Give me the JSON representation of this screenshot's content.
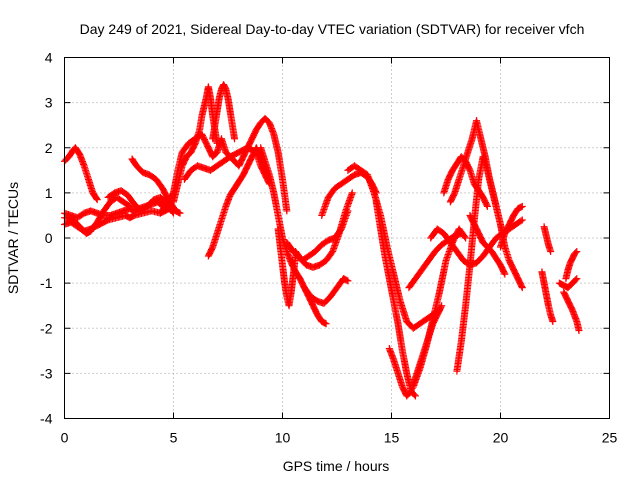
{
  "chart_data": {
    "type": "scatter",
    "title": "Day 249 of 2021, Sidereal Day-to-day VTEC variation (SDTVAR) for receiver vfch",
    "xlabel": "GPS time / hours",
    "ylabel": "SDTVAR / TECUs",
    "xlim": [
      0,
      25
    ],
    "ylim": [
      -4,
      4
    ],
    "xticks": [
      0,
      5,
      10,
      15,
      20,
      25
    ],
    "yticks": [
      -4,
      -3,
      -2,
      -1,
      0,
      1,
      2,
      3,
      4
    ],
    "grid": true,
    "marker": "plus",
    "marker_color": "#ff0000",
    "series": [
      {
        "x": [
          0.0,
          0.2,
          0.4,
          0.5,
          0.7,
          0.9,
          1.1,
          1.3,
          1.5
        ],
        "y": [
          1.7,
          1.8,
          1.95,
          2.0,
          1.85,
          1.6,
          1.3,
          1.0,
          0.85
        ]
      },
      {
        "x": [
          0.0,
          0.3,
          0.6,
          0.9,
          1.2,
          1.5,
          1.8,
          2.1,
          2.4,
          2.7,
          3.0,
          3.2,
          3.4,
          3.7,
          4.0,
          4.3,
          4.5,
          4.8,
          5.0
        ],
        "y": [
          0.55,
          0.5,
          0.45,
          0.55,
          0.6,
          0.55,
          0.5,
          0.5,
          0.55,
          0.6,
          0.65,
          0.6,
          0.65,
          0.7,
          0.75,
          0.8,
          0.7,
          0.65,
          0.6
        ]
      },
      {
        "x": [
          0.0,
          0.3,
          0.6,
          0.9,
          1.2,
          1.6,
          2.0,
          2.4,
          2.8,
          3.0,
          3.2,
          3.6,
          4.0,
          4.4,
          4.8
        ],
        "y": [
          0.3,
          0.35,
          0.25,
          0.15,
          0.2,
          0.3,
          0.4,
          0.45,
          0.5,
          0.45,
          0.5,
          0.55,
          0.6,
          0.55,
          0.65
        ]
      },
      {
        "x": [
          0.0,
          0.4,
          0.8,
          1.0,
          1.2,
          1.5,
          1.8,
          2.1,
          2.4,
          2.7,
          3.0
        ],
        "y": [
          0.45,
          0.4,
          0.2,
          0.1,
          0.15,
          0.35,
          0.6,
          0.8,
          0.9,
          0.8,
          0.7
        ]
      },
      {
        "x": [
          2.0,
          2.3,
          2.6,
          2.9,
          3.2,
          3.5,
          3.8,
          4.1,
          4.4,
          4.7,
          5.0
        ],
        "y": [
          0.9,
          1.0,
          1.05,
          0.95,
          0.75,
          0.6,
          0.7,
          0.85,
          0.9,
          0.75,
          0.55
        ]
      },
      {
        "x": [
          3.1,
          3.3,
          3.6,
          3.9,
          4.2,
          4.5,
          4.7,
          4.9,
          5.1,
          5.3
        ],
        "y": [
          1.75,
          1.6,
          1.45,
          1.4,
          1.3,
          1.1,
          0.9,
          0.75,
          0.6,
          0.55
        ]
      },
      {
        "x": [
          4.4,
          4.6,
          4.8,
          5.0,
          5.2,
          5.4,
          5.7,
          6.0,
          6.3,
          6.6,
          6.8,
          7.0,
          7.2,
          7.4,
          7.6,
          7.8,
          8.0
        ],
        "y": [
          0.55,
          0.7,
          0.85,
          1.0,
          1.5,
          1.9,
          2.1,
          2.2,
          2.3,
          2.0,
          1.8,
          1.9,
          2.2,
          1.9,
          1.8,
          1.7,
          1.6
        ]
      },
      {
        "x": [
          5.0,
          5.2,
          5.4,
          5.6,
          5.8,
          6.0,
          6.2,
          6.3,
          6.4,
          6.5,
          6.6,
          6.7,
          6.8,
          6.9,
          7.0
        ],
        "y": [
          0.8,
          1.2,
          1.6,
          1.8,
          1.9,
          2.1,
          2.4,
          2.7,
          2.9,
          3.1,
          3.35,
          3.1,
          2.7,
          2.4,
          2.1
        ]
      },
      {
        "x": [
          6.8,
          6.9,
          7.0,
          7.1,
          7.2,
          7.3,
          7.4,
          7.5,
          7.6,
          7.7,
          7.8
        ],
        "y": [
          2.2,
          2.5,
          2.8,
          3.1,
          3.3,
          3.4,
          3.3,
          3.1,
          2.8,
          2.5,
          2.2
        ]
      },
      {
        "x": [
          5.5,
          5.8,
          6.1,
          6.4,
          6.7,
          7.0,
          7.3,
          7.6,
          8.0,
          8.4,
          8.8,
          9.0,
          9.2,
          9.4
        ],
        "y": [
          1.3,
          1.5,
          1.6,
          1.55,
          1.5,
          1.6,
          1.7,
          1.8,
          1.9,
          2.0,
          1.9,
          1.6,
          1.4,
          1.2
        ]
      },
      {
        "x": [
          6.6,
          6.8,
          7.0,
          7.2,
          7.4,
          7.6,
          7.8,
          8.0,
          8.2,
          8.4,
          8.6,
          8.8,
          9.0,
          9.2,
          9.4
        ],
        "y": [
          -0.4,
          -0.2,
          0.1,
          0.4,
          0.7,
          0.95,
          1.1,
          1.25,
          1.4,
          1.6,
          1.8,
          2.0,
          1.8,
          1.6,
          1.3
        ]
      },
      {
        "x": [
          8.0,
          8.2,
          8.4,
          8.6,
          8.8,
          9.0,
          9.2,
          9.4,
          9.6,
          9.8,
          10.0,
          10.2
        ],
        "y": [
          1.6,
          1.8,
          2.0,
          2.2,
          2.4,
          2.55,
          2.65,
          2.55,
          2.3,
          1.9,
          1.3,
          0.6
        ]
      },
      {
        "x": [
          9.0,
          9.2,
          9.4,
          9.6,
          9.8,
          10.0,
          10.2,
          10.4,
          10.6,
          10.8,
          11.0,
          11.2,
          11.4,
          11.6,
          11.8,
          12.0
        ],
        "y": [
          2.0,
          1.7,
          1.4,
          1.0,
          0.5,
          0.0,
          -0.3,
          -0.55,
          -0.75,
          -0.9,
          -1.1,
          -1.3,
          -1.5,
          -1.7,
          -1.85,
          -1.9
        ]
      },
      {
        "x": [
          9.8,
          9.9,
          10.0,
          10.1,
          10.2,
          10.3,
          10.4,
          10.5,
          10.6
        ],
        "y": [
          0.2,
          -0.2,
          -0.6,
          -1.0,
          -1.3,
          -1.5,
          -1.2,
          -0.8,
          -0.4
        ]
      },
      {
        "x": [
          10.2,
          10.5,
          10.8,
          11.1,
          11.4,
          11.7,
          12.0,
          12.3,
          12.6,
          12.9,
          13.2
        ],
        "y": [
          -0.1,
          -0.3,
          -0.45,
          -0.6,
          -0.65,
          -0.6,
          -0.5,
          -0.3,
          0.1,
          0.6,
          1.0
        ]
      },
      {
        "x": [
          10.6,
          10.9,
          11.2,
          11.5,
          11.8,
          12.1,
          12.4,
          12.7,
          13.0
        ],
        "y": [
          -0.3,
          -0.5,
          -0.4,
          -0.3,
          -0.15,
          -0.05,
          0.0,
          0.2,
          0.6
        ]
      },
      {
        "x": [
          11.0,
          11.3,
          11.6,
          11.9,
          12.2,
          12.5,
          12.8,
          13.0
        ],
        "y": [
          -1.1,
          -1.3,
          -1.4,
          -1.45,
          -1.3,
          -1.1,
          -0.9,
          -0.95
        ]
      },
      {
        "x": [
          11.8,
          12.1,
          12.4,
          12.7,
          13.0,
          13.3,
          13.6,
          13.9,
          14.1,
          14.3
        ],
        "y": [
          0.5,
          0.9,
          1.1,
          1.2,
          1.3,
          1.4,
          1.45,
          1.35,
          1.2,
          1.0
        ]
      },
      {
        "x": [
          13.0,
          13.3,
          13.6,
          13.9,
          14.2,
          14.5,
          14.8,
          15.1,
          15.4,
          15.7,
          16.0,
          16.3,
          16.6,
          16.9,
          17.2
        ],
        "y": [
          1.5,
          1.6,
          1.5,
          1.4,
          1.0,
          0.5,
          -0.2,
          -0.8,
          -1.4,
          -1.85,
          -2.0,
          -1.9,
          -1.8,
          -1.7,
          -1.6
        ]
      },
      {
        "x": [
          14.3,
          14.5,
          14.7,
          14.9,
          15.1,
          15.3,
          15.5,
          15.7,
          15.9,
          16.1
        ],
        "y": [
          0.8,
          0.2,
          -0.4,
          -0.9,
          -1.4,
          -1.9,
          -2.5,
          -3.0,
          -3.4,
          -3.5
        ]
      },
      {
        "x": [
          14.9,
          15.1,
          15.3,
          15.5,
          15.7,
          15.9,
          16.1,
          16.3,
          16.5,
          16.7,
          16.9,
          17.1,
          17.3
        ],
        "y": [
          -2.45,
          -2.7,
          -3.0,
          -3.3,
          -3.5,
          -3.4,
          -3.1,
          -2.8,
          -2.5,
          -2.2,
          -1.9,
          -1.7,
          -1.5
        ]
      },
      {
        "x": [
          15.8,
          16.1,
          16.4,
          16.7,
          17.0,
          17.3,
          17.6,
          17.9,
          18.2
        ],
        "y": [
          -1.1,
          -0.9,
          -0.7,
          -0.5,
          -0.3,
          -0.15,
          -0.05,
          0.05,
          0.1
        ]
      },
      {
        "x": [
          16.0,
          16.3,
          16.6,
          16.9,
          17.2,
          17.5,
          17.8,
          18.1,
          18.4
        ],
        "y": [
          -3.3,
          -2.9,
          -2.4,
          -1.8,
          -1.2,
          -0.5,
          -0.1,
          0.2,
          0.0
        ]
      },
      {
        "x": [
          16.8,
          17.1,
          17.4,
          17.7,
          18.0,
          18.3,
          18.6,
          18.9,
          19.2,
          19.5,
          19.8,
          20.1,
          20.4,
          20.7,
          21.0
        ],
        "y": [
          0.0,
          0.2,
          0.1,
          -0.1,
          -0.3,
          -0.5,
          -0.6,
          -0.55,
          -0.4,
          -0.2,
          0.0,
          0.1,
          0.2,
          0.3,
          0.4
        ]
      },
      {
        "x": [
          18.0,
          18.2,
          18.4,
          18.6,
          18.8,
          19.0,
          19.2,
          19.4,
          19.6,
          19.8,
          20.0,
          20.2,
          20.4,
          20.6,
          20.8,
          21.0
        ],
        "y": [
          -2.95,
          -2.3,
          -1.5,
          -0.6,
          0.4,
          1.3,
          1.8,
          1.5,
          1.1,
          0.7,
          0.3,
          -0.2,
          -0.5,
          -0.7,
          -0.9,
          -1.1
        ]
      },
      {
        "x": [
          17.7,
          17.9,
          18.1,
          18.3,
          18.5,
          18.7,
          18.9,
          19.1,
          19.3,
          19.5,
          19.7,
          19.9,
          20.1
        ],
        "y": [
          0.8,
          1.0,
          1.3,
          1.6,
          1.9,
          2.2,
          2.6,
          2.2,
          1.8,
          1.3,
          0.9,
          0.5,
          0.1
        ]
      },
      {
        "x": [
          17.4,
          17.6,
          17.8,
          18.0,
          18.2,
          18.4,
          18.6,
          18.8,
          19.0,
          19.2,
          19.4
        ],
        "y": [
          1.0,
          1.3,
          1.5,
          1.65,
          1.8,
          1.7,
          1.5,
          1.2,
          1.05,
          0.9,
          0.7
        ]
      },
      {
        "x": [
          18.6,
          18.8,
          19.0,
          19.2,
          19.4,
          19.6,
          19.8,
          20.0,
          20.2
        ],
        "y": [
          0.5,
          0.3,
          0.1,
          -0.1,
          -0.2,
          -0.3,
          -0.45,
          -0.6,
          -0.8
        ]
      },
      {
        "x": [
          20.0,
          20.2,
          20.4,
          20.6,
          20.8,
          21.0
        ],
        "y": [
          -0.2,
          0.1,
          0.3,
          0.5,
          0.65,
          0.7
        ]
      },
      {
        "x": [
          22.0,
          22.1,
          22.2,
          22.3
        ],
        "y": [
          0.25,
          0.05,
          -0.15,
          -0.3
        ]
      },
      {
        "x": [
          21.9,
          22.0,
          22.1,
          22.2,
          22.3,
          22.4
        ],
        "y": [
          -0.75,
          -1.0,
          -1.25,
          -1.5,
          -1.7,
          -1.85
        ]
      },
      {
        "x": [
          22.7,
          22.9,
          23.1,
          23.3,
          23.5
        ],
        "y": [
          -1.0,
          -1.05,
          -1.1,
          -1.0,
          -0.9
        ]
      },
      {
        "x": [
          22.9,
          23.1,
          23.3,
          23.5,
          23.6
        ],
        "y": [
          -1.2,
          -1.4,
          -1.6,
          -1.85,
          -2.05
        ]
      },
      {
        "x": [
          23.0,
          23.1,
          23.2,
          23.3,
          23.4,
          23.5
        ],
        "y": [
          -0.9,
          -0.7,
          -0.55,
          -0.45,
          -0.35,
          -0.3
        ]
      }
    ]
  }
}
